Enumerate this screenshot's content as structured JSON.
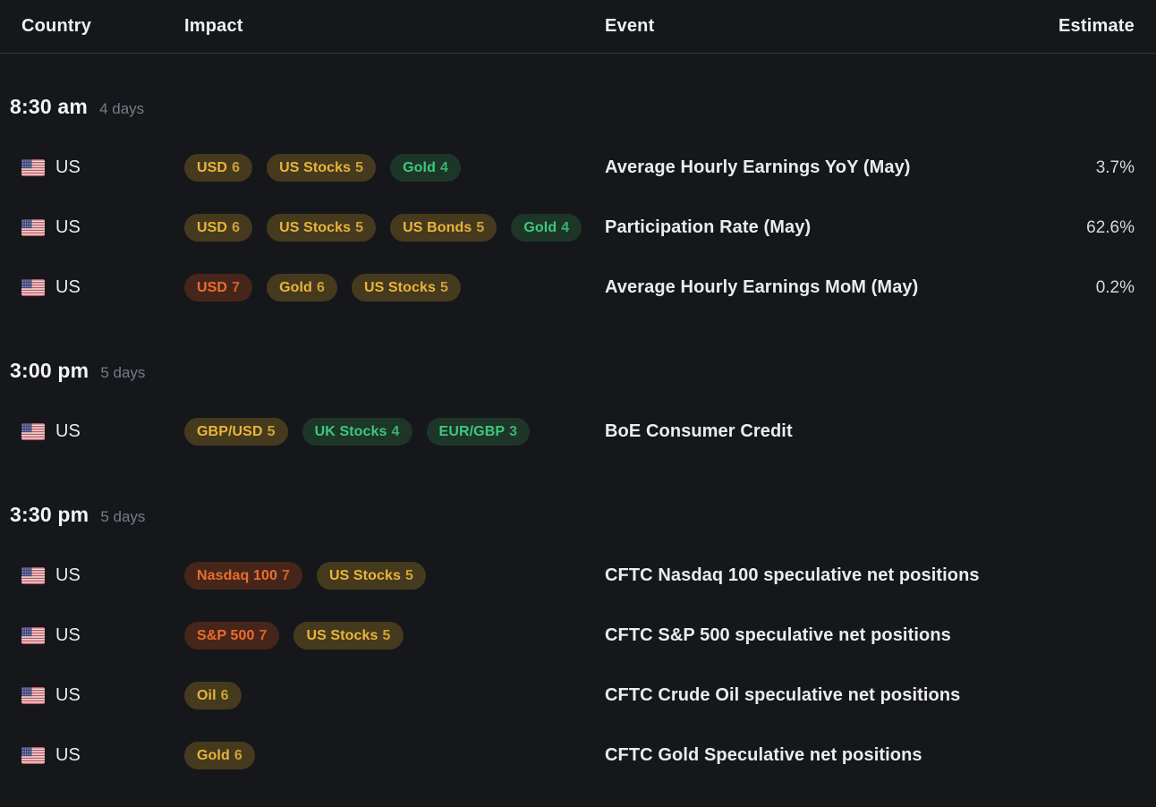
{
  "columns": {
    "country": "Country",
    "impact": "Impact",
    "event": "Event",
    "estimate": "Estimate"
  },
  "badge_tones": {
    "yellow": {
      "text": "#e9b43c",
      "bg": "#453a1d"
    },
    "orange": {
      "text": "#ec6d2d",
      "bg": "#46261b"
    },
    "green": {
      "text": "#3ec87d",
      "bg": "#1d3628"
    }
  },
  "flag_colors": {
    "red": "#c4555c",
    "white": "#eceef0",
    "blue": "#434a7d"
  },
  "groups": [
    {
      "time": "8:30 am",
      "days": "4 days",
      "rows": [
        {
          "country": "US",
          "flag": "us-flag",
          "badges": [
            {
              "label": "USD",
              "score": "6",
              "tone": "yellow"
            },
            {
              "label": "US Stocks",
              "score": "5",
              "tone": "yellow"
            },
            {
              "label": "Gold",
              "score": "4",
              "tone": "green"
            }
          ],
          "event": "Average Hourly Earnings YoY (May)",
          "estimate": "3.7%"
        },
        {
          "country": "US",
          "flag": "us-flag",
          "badges": [
            {
              "label": "USD",
              "score": "6",
              "tone": "yellow"
            },
            {
              "label": "US Stocks",
              "score": "5",
              "tone": "yellow"
            },
            {
              "label": "US Bonds",
              "score": "5",
              "tone": "yellow"
            },
            {
              "label": "Gold",
              "score": "4",
              "tone": "green"
            }
          ],
          "event": "Participation Rate (May)",
          "estimate": "62.6%"
        },
        {
          "country": "US",
          "flag": "us-flag",
          "badges": [
            {
              "label": "USD",
              "score": "7",
              "tone": "orange"
            },
            {
              "label": "Gold",
              "score": "6",
              "tone": "yellow"
            },
            {
              "label": "US Stocks",
              "score": "5",
              "tone": "yellow"
            }
          ],
          "event": "Average Hourly Earnings MoM (May)",
          "estimate": "0.2%"
        }
      ]
    },
    {
      "time": "3:00 pm",
      "days": "5 days",
      "rows": [
        {
          "country": "US",
          "flag": "us-flag",
          "badges": [
            {
              "label": "GBP/USD",
              "score": "5",
              "tone": "yellow"
            },
            {
              "label": "UK Stocks",
              "score": "4",
              "tone": "green"
            },
            {
              "label": "EUR/GBP",
              "score": "3",
              "tone": "green"
            }
          ],
          "event": "BoE Consumer Credit",
          "estimate": ""
        }
      ]
    },
    {
      "time": "3:30 pm",
      "days": "5 days",
      "rows": [
        {
          "country": "US",
          "flag": "us-flag",
          "badges": [
            {
              "label": "Nasdaq 100",
              "score": "7",
              "tone": "orange"
            },
            {
              "label": "US Stocks",
              "score": "5",
              "tone": "yellow"
            }
          ],
          "event": "CFTC Nasdaq 100 speculative net positions",
          "estimate": ""
        },
        {
          "country": "US",
          "flag": "us-flag",
          "badges": [
            {
              "label": "S&P 500",
              "score": "7",
              "tone": "orange"
            },
            {
              "label": "US Stocks",
              "score": "5",
              "tone": "yellow"
            }
          ],
          "event": "CFTC S&P 500 speculative net positions",
          "estimate": ""
        },
        {
          "country": "US",
          "flag": "us-flag",
          "badges": [
            {
              "label": "Oil",
              "score": "6",
              "tone": "yellow"
            }
          ],
          "event": "CFTC Crude Oil speculative net positions",
          "estimate": ""
        },
        {
          "country": "US",
          "flag": "us-flag",
          "badges": [
            {
              "label": "Gold",
              "score": "6",
              "tone": "yellow"
            }
          ],
          "event": "CFTC Gold Speculative net positions",
          "estimate": ""
        }
      ]
    }
  ]
}
